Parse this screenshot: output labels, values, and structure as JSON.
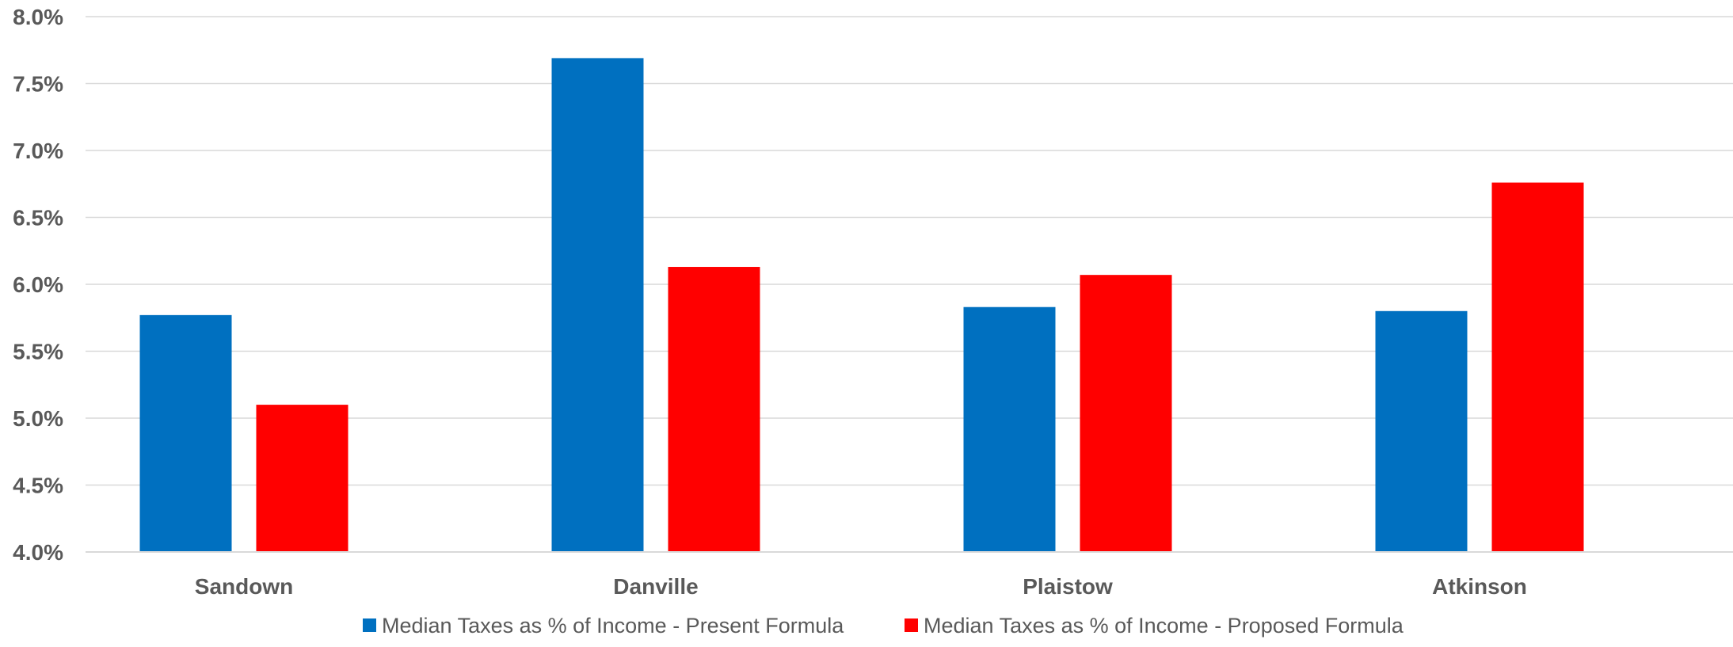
{
  "chart_data": {
    "type": "bar",
    "categories": [
      "Sandown",
      "Danville",
      "Plaistow",
      "Atkinson"
    ],
    "series": [
      {
        "name": "Median Taxes as % of Income - Present Formula",
        "color": "#0070C0",
        "values": [
          5.77,
          7.69,
          5.83,
          5.8
        ]
      },
      {
        "name": "Median Taxes as % of Income - Proposed Formula",
        "color": "#FF0000",
        "values": [
          5.1,
          6.13,
          6.07,
          6.76
        ]
      }
    ],
    "ylim": [
      4.0,
      8.0
    ],
    "yticks": [
      "4.0%",
      "4.5%",
      "5.0%",
      "5.5%",
      "6.0%",
      "6.5%",
      "7.0%",
      "7.5%",
      "8.0%"
    ],
    "ytick_values": [
      4.0,
      4.5,
      5.0,
      5.5,
      6.0,
      6.5,
      7.0,
      7.5,
      8.0
    ],
    "grid": true,
    "legend_position": "bottom",
    "title": "",
    "xlabel": "",
    "ylabel": ""
  }
}
